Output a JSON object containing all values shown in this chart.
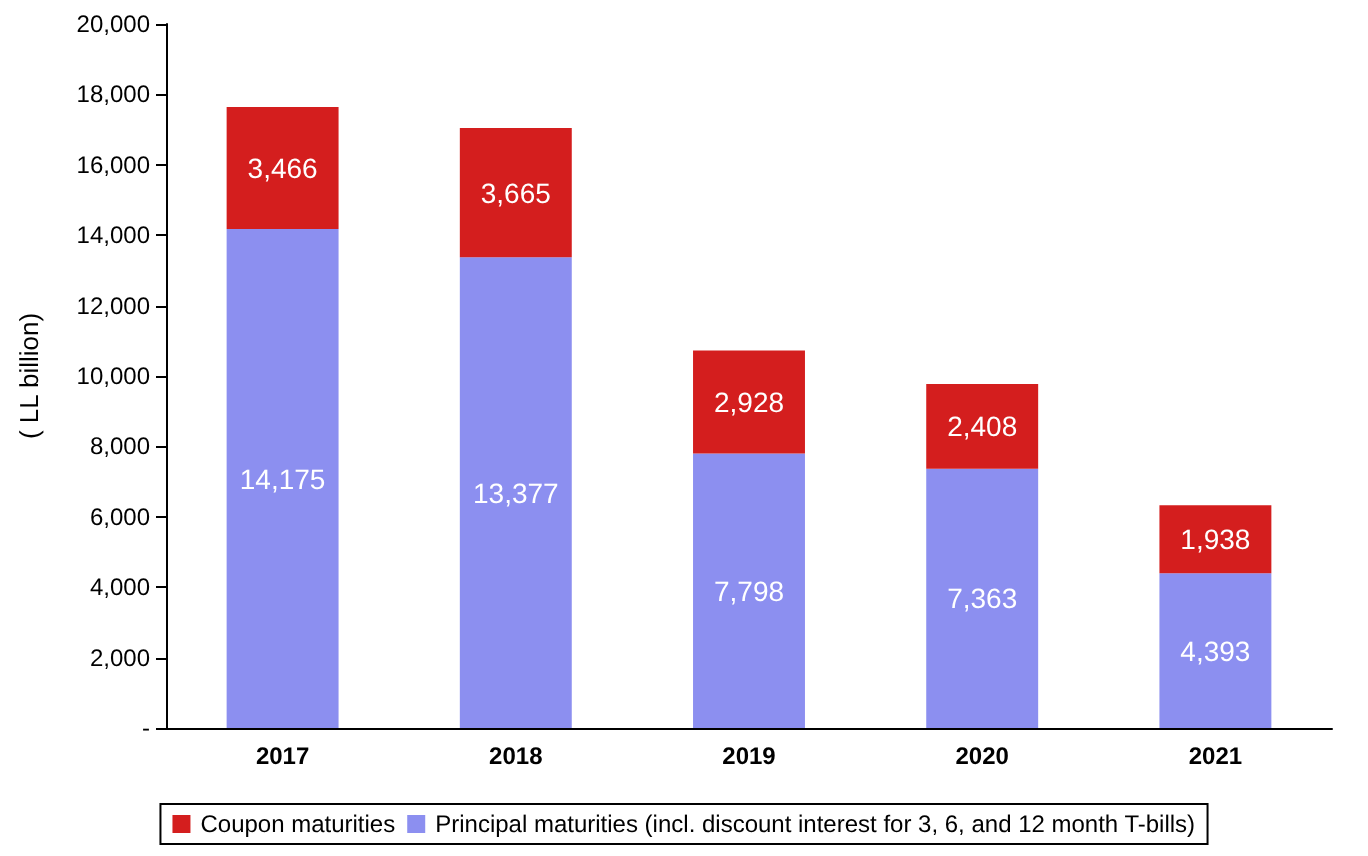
{
  "chart_data": {
    "type": "bar",
    "stacked": true,
    "ylabel": "( LL billion)",
    "categories": [
      "2017",
      "2018",
      "2019",
      "2020",
      "2021"
    ],
    "series": [
      {
        "name": "Principal maturities (incl. discount interest for 3, 6, and 12 month T-bills)",
        "color": "#8c8ff0",
        "values": [
          14175,
          13377,
          7798,
          7363,
          4393
        ],
        "value_labels": [
          "14,175",
          "13,377",
          "7,798",
          "7,363",
          "4,393"
        ]
      },
      {
        "name": "Coupon maturities",
        "color": "#d41e1e",
        "values": [
          3466,
          3665,
          2928,
          2408,
          1938
        ],
        "value_labels": [
          "3,466",
          "3,665",
          "2,928",
          "2,408",
          "1,938"
        ]
      }
    ],
    "ylim": [
      0,
      20000
    ],
    "yticks": [
      {
        "value": 0,
        "label": "-"
      },
      {
        "value": 2000,
        "label": "2,000"
      },
      {
        "value": 4000,
        "label": "4,000"
      },
      {
        "value": 6000,
        "label": "6,000"
      },
      {
        "value": 8000,
        "label": "8,000"
      },
      {
        "value": 10000,
        "label": "10,000"
      },
      {
        "value": 12000,
        "label": "12,000"
      },
      {
        "value": 14000,
        "label": "14,000"
      },
      {
        "value": 16000,
        "label": "16,000"
      },
      {
        "value": 18000,
        "label": "18,000"
      },
      {
        "value": 20000,
        "label": "20,000"
      }
    ],
    "grid": false,
    "legend": "bottom"
  }
}
